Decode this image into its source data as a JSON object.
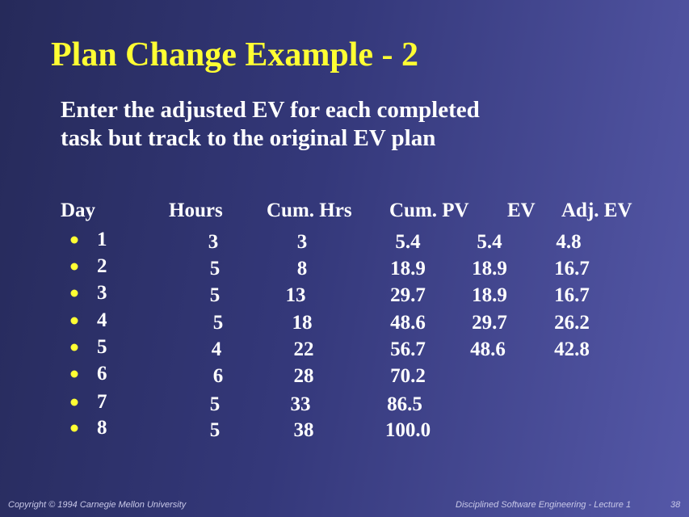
{
  "title": "Plan Change Example - 2",
  "subtitle": [
    "Enter the adjusted EV for each completed",
    "task but track to the original EV plan"
  ],
  "table": {
    "header": [
      "Day",
      "Hours",
      "Cum. Hrs",
      "Cum. PV",
      "EV",
      "Adj. EV"
    ],
    "rows": [
      [
        "1",
        "3",
        "3",
        "5.4",
        "5.4",
        "4.8"
      ],
      [
        "2",
        "5",
        "8",
        "18.9",
        "18.9",
        "16.7"
      ],
      [
        "3",
        "5",
        "13",
        "29.7",
        "18.9",
        "16.7"
      ],
      [
        "4",
        "5",
        "18",
        "48.6",
        "29.7",
        "26.2"
      ],
      [
        "5",
        "4",
        "22",
        "56.7",
        "48.6",
        "42.8"
      ],
      [
        "6",
        "6",
        "28",
        "70.2"
      ],
      [
        "7",
        "5",
        "33",
        "86.5"
      ],
      [
        "8",
        "5",
        "38",
        "100.0"
      ]
    ]
  },
  "footer": {
    "copyright": "Copyright © 1994 Carnegie Mellon University",
    "course": "Disciplined Software Engineering - Lecture 1",
    "page": "38"
  }
}
